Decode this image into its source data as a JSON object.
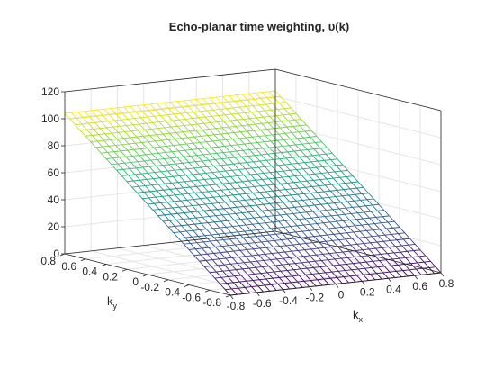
{
  "chart_data": {
    "type": "surface",
    "title": "Echo-planar time weighting, υ(k)",
    "xlabel": "k",
    "xlabel_sub": "x",
    "ylabel": "k",
    "ylabel_sub": "y",
    "zlabel": "",
    "x_range": [
      -0.8,
      0.8
    ],
    "y_range": [
      -0.8,
      0.8
    ],
    "zlim": [
      0,
      120
    ],
    "x_ticks": [
      "-0.8",
      "-0.6",
      "-0.4",
      "-0.2",
      "0",
      "0.2",
      "0.4",
      "0.6",
      "0.8"
    ],
    "x_tick_values": [
      -0.8,
      -0.6,
      -0.4,
      -0.2,
      0,
      0.2,
      0.4,
      0.6,
      0.8
    ],
    "y_ticks": [
      "-0.8",
      "-0.6",
      "-0.4",
      "-0.2",
      "0",
      "0.2",
      "0.4",
      "0.6",
      "0.8"
    ],
    "y_tick_values": [
      -0.8,
      -0.6,
      -0.4,
      -0.2,
      0,
      0.2,
      0.4,
      0.6,
      0.8
    ],
    "z_ticks": [
      "0",
      "20",
      "40",
      "60",
      "80",
      "100",
      "120"
    ],
    "z_tick_values": [
      0,
      20,
      40,
      60,
      80,
      100,
      120
    ],
    "surface": {
      "description_formula": "z increases linearly with k_y from 0 at k_y=-0.8 to ~104 at k_y=0.8, constant in k_x",
      "z_at_ymin": 0,
      "z_at_ymax": 104,
      "grid_lines_x": 33,
      "grid_lines_y": 33
    },
    "colormap": "viridis",
    "grid": true,
    "box": "3d-wire"
  }
}
